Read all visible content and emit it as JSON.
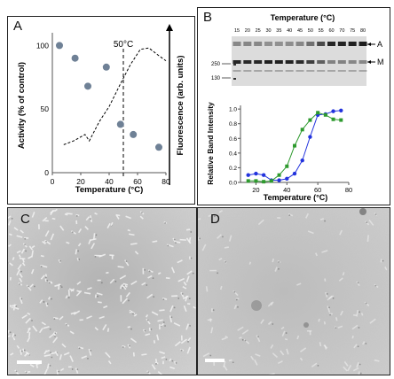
{
  "panels": {
    "a": {
      "label": "A",
      "ylabel": "Activity (% of control)",
      "y2label": "Fluorescence (arb. units)",
      "xlabel": "Temperature (°C)",
      "annotation": "50°C",
      "yticks": [
        "100",
        "50",
        "0"
      ],
      "xticks": [
        "0",
        "20",
        "40",
        "60",
        "80"
      ]
    },
    "b": {
      "label": "B",
      "gel_title": "Temperature (°C)",
      "lane_labels": [
        "15",
        "20",
        "25",
        "30",
        "35",
        "40",
        "45",
        "50",
        "55",
        "60",
        "70",
        "75",
        "80"
      ],
      "marker_labels": [
        "250",
        "130"
      ],
      "band_labels": [
        "A",
        "M"
      ],
      "ylabel": "Relative Band Intensity",
      "xlabel": "Temperature (°C)",
      "yticks": [
        "0.0",
        "0.2",
        "0.4",
        "0.6",
        "0.8",
        "1.0"
      ],
      "xticks": [
        "20",
        "40",
        "60",
        "80"
      ]
    },
    "c": {
      "label": "C"
    },
    "d": {
      "label": "D"
    }
  },
  "colors": {
    "activity": "#6f8196",
    "blue": "#2233dd",
    "green": "#2e9a2e"
  },
  "chart_data": [
    {
      "type": "scatter",
      "xlabel": "Temperature (°C)",
      "ylabel": "Activity (% of control)",
      "xlim": [
        0,
        80
      ],
      "ylim": [
        0,
        110
      ],
      "series": [
        {
          "values": [
            [
              5,
              100
            ],
            [
              16,
              90
            ],
            [
              25,
              68
            ],
            [
              38,
              83
            ],
            [
              48,
              38
            ],
            [
              57,
              30
            ],
            [
              75,
              20
            ]
          ]
        },
        {
          "values": [
            [
              8,
              22
            ],
            [
              15,
              25
            ],
            [
              23,
              30
            ],
            [
              26,
              25
            ],
            [
              33,
              40
            ],
            [
              40,
              52
            ],
            [
              48,
              70
            ],
            [
              55,
              85
            ],
            [
              62,
              97
            ],
            [
              68,
              98
            ],
            [
              75,
              92
            ],
            [
              80,
              88
            ]
          ]
        }
      ],
      "annotation": "50°C"
    },
    {
      "type": "scatter",
      "xlabel": "Temperature (°C)",
      "ylabel": "Relative Band Intensity",
      "xlim": [
        10,
        80
      ],
      "ylim": [
        0,
        1.05
      ],
      "series": [
        {
          "color": "blue",
          "values": [
            [
              15,
              0.1
            ],
            [
              20,
              0.12
            ],
            [
              25,
              0.1
            ],
            [
              30,
              0.03
            ],
            [
              35,
              0.03
            ],
            [
              40,
              0.05
            ],
            [
              45,
              0.12
            ],
            [
              50,
              0.3
            ],
            [
              55,
              0.62
            ],
            [
              60,
              0.92
            ],
            [
              65,
              0.93
            ],
            [
              70,
              0.97
            ],
            [
              75,
              0.98
            ]
          ]
        },
        {
          "color": "green",
          "values": [
            [
              15,
              0.02
            ],
            [
              20,
              0.02
            ],
            [
              25,
              0.01
            ],
            [
              30,
              0.02
            ],
            [
              35,
              0.1
            ],
            [
              40,
              0.22
            ],
            [
              45,
              0.5
            ],
            [
              50,
              0.72
            ],
            [
              55,
              0.85
            ],
            [
              60,
              0.95
            ],
            [
              65,
              0.92
            ],
            [
              70,
              0.86
            ],
            [
              75,
              0.85
            ]
          ]
        }
      ]
    }
  ]
}
